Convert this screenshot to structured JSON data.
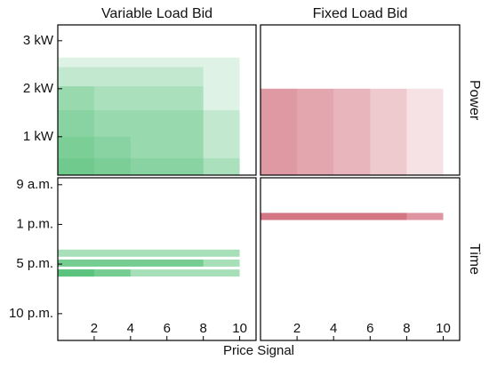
{
  "chart_data": [
    {
      "type": "rect",
      "title": "Variable Load Bid",
      "color": "#3cb864",
      "opacity": 0.17,
      "xlim": [
        0,
        10.9
      ],
      "ylim": [
        0.2,
        3.33
      ],
      "yticks": [
        {
          "value": 1,
          "label": "1 kW"
        },
        {
          "value": 2,
          "label": "2 kW"
        },
        {
          "value": 3,
          "label": "3 kW"
        }
      ],
      "rects": [
        {
          "price": 10,
          "level": 2.65
        },
        {
          "price": 8,
          "level": 2.45
        },
        {
          "price": 8,
          "level": 2.05
        },
        {
          "price": 2,
          "level": 2.05
        },
        {
          "price": 10,
          "level": 1.55
        },
        {
          "price": 4,
          "level": 1.0
        },
        {
          "price": 10,
          "level": 0.55
        }
      ]
    },
    {
      "type": "rect",
      "title": "Fixed Load Bid",
      "row_label": "Power",
      "color": "#d06878",
      "opacity": 0.2,
      "xlim": [
        0,
        10.9
      ],
      "ylim": [
        0.2,
        3.33
      ],
      "rects": [
        {
          "price": 10,
          "level": 2.0
        },
        {
          "price": 8,
          "level": 2.0
        },
        {
          "price": 6,
          "level": 2.0
        },
        {
          "price": 4,
          "level": 2.0
        },
        {
          "price": 2,
          "level": 2.0
        }
      ]
    },
    {
      "type": "band",
      "xlabel": "Price Signal",
      "color": "#3cb864",
      "opacity": 0.45,
      "xlim": [
        0,
        10.9
      ],
      "xticks": [
        2,
        4,
        6,
        8,
        10
      ],
      "ylim": [
        8.3,
        24.7
      ],
      "inverted": true,
      "yticks": [
        {
          "value": 9,
          "label": "9 a.m."
        },
        {
          "value": 13,
          "label": "1 p.m."
        },
        {
          "value": 17,
          "label": "5 p.m."
        },
        {
          "value": 22,
          "label": "10 p.m."
        }
      ],
      "rects": [
        {
          "price": 10,
          "level": 15.9
        },
        {
          "price": 10,
          "level": 16.9
        },
        {
          "price": 8,
          "level": 16.9
        },
        {
          "price": 10,
          "level": 17.9
        },
        {
          "price": 4,
          "level": 17.9
        },
        {
          "price": 2,
          "level": 17.9
        }
      ]
    },
    {
      "type": "band",
      "row_label": "Time",
      "color": "#d06878",
      "opacity": 0.7,
      "xlim": [
        0,
        10.9
      ],
      "xticks": [
        2,
        4,
        6,
        8,
        10
      ],
      "ylim": [
        8.3,
        24.7
      ],
      "inverted": true,
      "rects": [
        {
          "price": 10,
          "level": 12.2
        },
        {
          "price": 8,
          "level": 12.2
        }
      ]
    }
  ]
}
